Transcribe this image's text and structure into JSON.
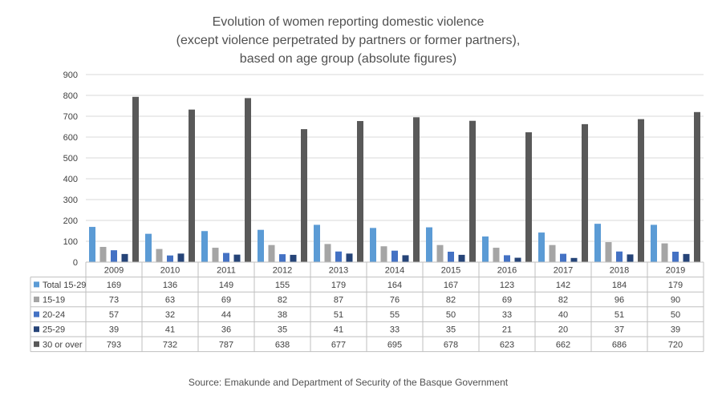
{
  "chart_data": {
    "type": "bar",
    "title": [
      "Evolution of women reporting domestic violence",
      "(except violence perpetrated by partners or former partners),",
      "based on age group (absolute figures)"
    ],
    "categories": [
      "2009",
      "2010",
      "2011",
      "2012",
      "2013",
      "2014",
      "2015",
      "2016",
      "2017",
      "2018",
      "2019"
    ],
    "series": [
      {
        "name": "Total 15-29",
        "color": "#5B9BD5",
        "values": [
          169,
          136,
          149,
          155,
          179,
          164,
          167,
          123,
          142,
          184,
          179
        ]
      },
      {
        "name": "15-19",
        "color": "#A5A5A5",
        "values": [
          73,
          63,
          69,
          82,
          87,
          76,
          82,
          69,
          82,
          96,
          90
        ]
      },
      {
        "name": "20-24",
        "color": "#4472C4",
        "values": [
          57,
          32,
          44,
          38,
          51,
          55,
          50,
          33,
          40,
          51,
          50
        ]
      },
      {
        "name": "25-29",
        "color": "#264478",
        "values": [
          39,
          41,
          36,
          35,
          41,
          33,
          35,
          21,
          20,
          37,
          39
        ]
      },
      {
        "name": "30 or over",
        "color": "#595959",
        "values": [
          793,
          732,
          787,
          638,
          677,
          695,
          678,
          623,
          662,
          686,
          720
        ]
      }
    ],
    "ylim": [
      0,
      900
    ],
    "yticks": [
      0,
      100,
      200,
      300,
      400,
      500,
      600,
      700,
      800,
      900
    ],
    "grid": true,
    "legend": "data table below chart",
    "xlabel": "",
    "ylabel": ""
  },
  "source": "Source: Emakunde and Department of Security of the Basque Government"
}
